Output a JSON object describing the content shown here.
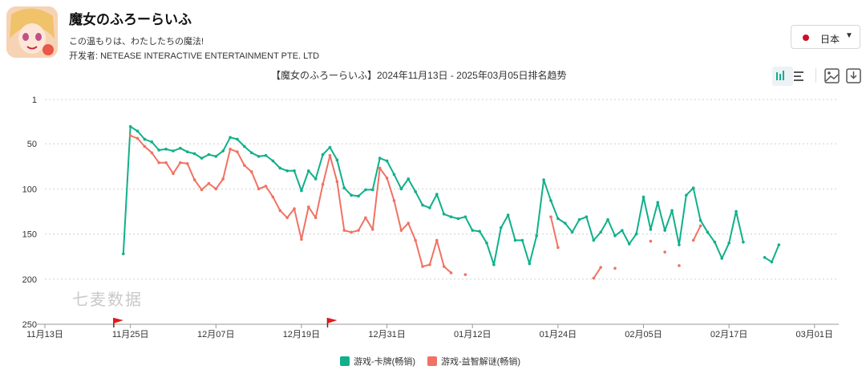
{
  "app": {
    "title": "魔女のふろーらいふ",
    "subtitle": "この温もりは、わたしたちの魔法!",
    "developer": "开发者: NETEASE INTERACTIVE ENTERTAINMENT PTE. LTD",
    "icon": "app-icon-anime-girl"
  },
  "region": {
    "label": "日本",
    "flag_color": "#c8102e",
    "icon": "chevron-down-icon"
  },
  "toolbar": {
    "icons": [
      "bar-chart-icon",
      "list-icon",
      "image-icon",
      "download-icon"
    ]
  },
  "watermark": "七麦数据",
  "chart_data": {
    "type": "line",
    "title": "【魔女のふろーらいふ】2024年11月13日 - 2025年03月05日排名趋势",
    "y_inverted": true,
    "ylim": [
      1,
      250
    ],
    "y_ticks": [
      "1",
      "50",
      "100",
      "150",
      "200",
      "250"
    ],
    "y_tick_values": [
      1,
      50,
      100,
      150,
      200,
      250
    ],
    "x_ticks": [
      "11月13日",
      "11月25日",
      "12月07日",
      "12月19日",
      "12月31日",
      "01月12日",
      "01月24日",
      "02月05日",
      "02月17日",
      "03月01日"
    ],
    "x_tick_values": [
      "2024-11-13",
      "2024-11-25",
      "2024-12-07",
      "2024-12-19",
      "2024-12-31",
      "2025-01-12",
      "2025-01-24",
      "2025-02-05",
      "2025-02-17",
      "2025-03-01"
    ],
    "grid": true,
    "legend_position": "bottom-center",
    "event_flags": [
      "2024-11-23",
      "2024-12-23"
    ],
    "series": [
      {
        "name": "游戏-卡牌(畅销)",
        "color": "#10b08a",
        "points": [
          [
            "2024-11-24",
            172
          ],
          [
            "2024-11-25",
            31
          ],
          [
            "2024-11-26",
            36
          ],
          [
            "2024-11-27",
            45
          ],
          [
            "2024-11-28",
            48
          ],
          [
            "2024-11-29",
            57
          ],
          [
            "2024-11-30",
            56
          ],
          [
            "2024-12-01",
            58
          ],
          [
            "2024-12-02",
            55
          ],
          [
            "2024-12-03",
            59
          ],
          [
            "2024-12-04",
            61
          ],
          [
            "2024-12-05",
            66
          ],
          [
            "2024-12-06",
            62
          ],
          [
            "2024-12-07",
            64
          ],
          [
            "2024-12-08",
            58
          ],
          [
            "2024-12-09",
            43
          ],
          [
            "2024-12-10",
            45
          ],
          [
            "2024-12-11",
            53
          ],
          [
            "2024-12-12",
            60
          ],
          [
            "2024-12-13",
            64
          ],
          [
            "2024-12-14",
            63
          ],
          [
            "2024-12-15",
            69
          ],
          [
            "2024-12-16",
            77
          ],
          [
            "2024-12-17",
            80
          ],
          [
            "2024-12-18",
            80
          ],
          [
            "2024-12-19",
            102
          ],
          [
            "2024-12-20",
            80
          ],
          [
            "2024-12-21",
            89
          ],
          [
            "2024-12-22",
            62
          ],
          [
            "2024-12-23",
            54
          ],
          [
            "2024-12-24",
            68
          ],
          [
            "2024-12-25",
            99
          ],
          [
            "2024-12-26",
            107
          ],
          [
            "2024-12-27",
            108
          ],
          [
            "2024-12-28",
            101
          ],
          [
            "2024-12-29",
            101
          ],
          [
            "2024-12-30",
            66
          ],
          [
            "2024-12-31",
            69
          ],
          [
            "2025-01-01",
            84
          ],
          [
            "2025-01-02",
            100
          ],
          [
            "2025-01-03",
            89
          ],
          [
            "2025-01-04",
            103
          ],
          [
            "2025-01-05",
            118
          ],
          [
            "2025-01-06",
            121
          ],
          [
            "2025-01-07",
            106
          ],
          [
            "2025-01-08",
            128
          ],
          [
            "2025-01-09",
            131
          ],
          [
            "2025-01-10",
            133
          ],
          [
            "2025-01-11",
            131
          ],
          [
            "2025-01-12",
            146
          ],
          [
            "2025-01-13",
            147
          ],
          [
            "2025-01-14",
            160
          ],
          [
            "2025-01-15",
            184
          ],
          [
            "2025-01-16",
            143
          ],
          [
            "2025-01-17",
            129
          ],
          [
            "2025-01-18",
            157
          ],
          [
            "2025-01-19",
            157
          ],
          [
            "2025-01-20",
            183
          ],
          [
            "2025-01-21",
            152
          ],
          [
            "2025-01-22",
            90
          ],
          [
            "2025-01-23",
            113
          ],
          [
            "2025-01-24",
            133
          ],
          [
            "2025-01-25",
            138
          ],
          [
            "2025-01-26",
            148
          ],
          [
            "2025-01-27",
            134
          ],
          [
            "2025-01-28",
            131
          ],
          [
            "2025-01-29",
            157
          ],
          [
            "2025-01-30",
            148
          ],
          [
            "2025-01-31",
            134
          ],
          [
            "2025-02-01",
            152
          ],
          [
            "2025-02-02",
            146
          ],
          [
            "2025-02-03",
            161
          ],
          [
            "2025-02-04",
            150
          ],
          [
            "2025-02-05",
            109
          ],
          [
            "2025-02-06",
            145
          ],
          [
            "2025-02-07",
            115
          ],
          [
            "2025-02-08",
            146
          ],
          [
            "2025-02-09",
            124
          ],
          [
            "2025-02-10",
            162
          ],
          [
            "2025-02-11",
            107
          ],
          [
            "2025-02-12",
            99
          ],
          [
            "2025-02-13",
            135
          ],
          [
            "2025-02-14",
            148
          ],
          [
            "2025-02-15",
            159
          ],
          [
            "2025-02-16",
            177
          ],
          [
            "2025-02-17",
            160
          ],
          [
            "2025-02-18",
            125
          ],
          [
            "2025-02-19",
            159
          ],
          null,
          [
            "2025-02-22",
            176
          ],
          [
            "2025-02-23",
            181
          ],
          [
            "2025-02-24",
            162
          ]
        ]
      },
      {
        "name": "游戏-益智解谜(畅销)",
        "color": "#f07264",
        "points": [
          [
            "2024-11-25",
            41
          ],
          [
            "2024-11-26",
            44
          ],
          [
            "2024-11-27",
            53
          ],
          [
            "2024-11-28",
            60
          ],
          [
            "2024-11-29",
            71
          ],
          [
            "2024-11-30",
            71
          ],
          [
            "2024-12-01",
            83
          ],
          [
            "2024-12-02",
            71
          ],
          [
            "2024-12-03",
            72
          ],
          [
            "2024-12-04",
            90
          ],
          [
            "2024-12-05",
            101
          ],
          [
            "2024-12-06",
            94
          ],
          [
            "2024-12-07",
            100
          ],
          [
            "2024-12-08",
            89
          ],
          [
            "2024-12-09",
            56
          ],
          [
            "2024-12-10",
            59
          ],
          [
            "2024-12-11",
            74
          ],
          [
            "2024-12-12",
            81
          ],
          [
            "2024-12-13",
            100
          ],
          [
            "2024-12-14",
            97
          ],
          [
            "2024-12-15",
            109
          ],
          [
            "2024-12-16",
            124
          ],
          [
            "2024-12-17",
            132
          ],
          [
            "2024-12-18",
            122
          ],
          [
            "2024-12-19",
            156
          ],
          [
            "2024-12-20",
            120
          ],
          [
            "2024-12-21",
            132
          ],
          [
            "2024-12-22",
            95
          ],
          [
            "2024-12-23",
            63
          ],
          [
            "2024-12-24",
            92
          ],
          [
            "2024-12-25",
            146
          ],
          [
            "2024-12-26",
            148
          ],
          [
            "2024-12-27",
            146
          ],
          [
            "2024-12-28",
            132
          ],
          [
            "2024-12-29",
            145
          ],
          [
            "2024-12-30",
            77
          ],
          [
            "2024-12-31",
            88
          ],
          [
            "2025-01-01",
            113
          ],
          [
            "2025-01-02",
            146
          ],
          [
            "2025-01-03",
            138
          ],
          [
            "2025-01-04",
            157
          ],
          [
            "2025-01-05",
            186
          ],
          [
            "2025-01-06",
            184
          ],
          [
            "2025-01-07",
            157
          ],
          [
            "2025-01-08",
            186
          ],
          [
            "2025-01-09",
            193
          ],
          null,
          [
            "2025-01-11",
            195
          ],
          null,
          [
            "2025-01-23",
            131
          ],
          [
            "2025-01-24",
            165
          ],
          null,
          [
            "2025-01-29",
            199
          ],
          [
            "2025-01-30",
            187
          ],
          null,
          [
            "2025-02-01",
            188
          ],
          null,
          [
            "2025-02-06",
            158
          ],
          null,
          [
            "2025-02-08",
            170
          ],
          null,
          [
            "2025-02-10",
            185
          ],
          null,
          [
            "2025-02-12",
            157
          ],
          [
            "2025-02-13",
            141
          ]
        ]
      }
    ]
  }
}
